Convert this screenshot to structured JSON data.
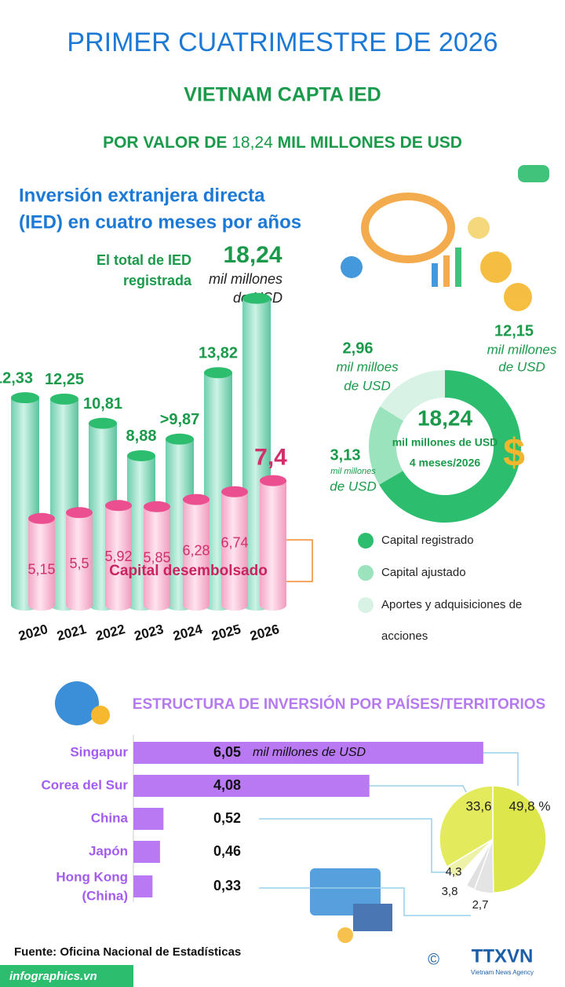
{
  "header": {
    "title": "PRIMER CUATRIMESTRE DE 2026",
    "subtitle": "VIETNAM CAPTA IED",
    "headline": [
      "POR VALOR DE",
      "18,24",
      "MIL MILLONES DE USD"
    ]
  },
  "years_chart": {
    "title_lines": [
      "Inversión extranjera directa",
      "(IED) en cuatro meses por años"
    ],
    "total_lines": [
      "El total de IED",
      "registrada"
    ],
    "total_unit_lines": [
      "mil millones",
      "de USD"
    ],
    "categories": [
      "2020",
      "2021",
      "2022",
      "2023",
      "2024",
      "2025",
      "2026"
    ],
    "series": [
      {
        "name": "Capital registrado",
        "color": "#2dbd6e",
        "values": [
          12.33,
          12.25,
          10.81,
          8.88,
          9.87,
          13.82,
          18.24
        ],
        "value_labels": [
          "12,33",
          "12,25",
          "10,81",
          "8,88",
          ">9,87",
          "13,82",
          "18,24"
        ]
      },
      {
        "name": "Capital desembolsado",
        "color": "#ec4f8f",
        "values": [
          5.15,
          5.5,
          5.92,
          5.85,
          6.28,
          6.74,
          7.4
        ],
        "value_labels": [
          "5,15",
          "5,5",
          "5,92",
          "5,85",
          "6,28",
          "6,74",
          "7,4"
        ]
      }
    ]
  },
  "donut": {
    "center_lines": [
      "18,24",
      "mil millones de USD",
      "4 meses/2026"
    ],
    "segments": [
      {
        "name": "Capital registrado",
        "color": "#2dbd6e",
        "value": 12.15,
        "label": "12,15",
        "unit_lines": [
          "mil millones",
          "de USD"
        ]
      },
      {
        "name": "Capital ajustado",
        "color": "#9ae3bd",
        "value": 3.13,
        "label": "3,13",
        "unit_lines": [
          "mil millones",
          "de USD"
        ]
      },
      {
        "name": "Aportes y adquisiciones de acciones",
        "color": "#d8f3e5",
        "value": 2.96,
        "label": "2,96",
        "unit_lines": [
          "mil milloes",
          "de USD"
        ]
      }
    ],
    "legend_last_lines": [
      "Aportes y adquisiciones de",
      "acciones"
    ]
  },
  "countries": {
    "title": "ESTRUCTURA DE INVERSIÓN POR PAÍSES/TERRITORIOS",
    "unit": "mil millones de USD",
    "color": "#b879f2",
    "rows": [
      {
        "name_lines": [
          "Singapur"
        ],
        "value": 6.05,
        "label": "6,05",
        "share": 49.8,
        "share_label": "49,8 %"
      },
      {
        "name_lines": [
          "Corea del Sur"
        ],
        "value": 4.08,
        "label": "4,08",
        "share": 33.6,
        "share_label": "33,6"
      },
      {
        "name_lines": [
          "China"
        ],
        "value": 0.52,
        "label": "0,52",
        "share": 4.3,
        "share_label": "4,3"
      },
      {
        "name_lines": [
          "Japón"
        ],
        "value": 0.46,
        "label": "0,46",
        "share": 3.8,
        "share_label": "3,8"
      },
      {
        "name_lines": [
          "Hong Kong",
          "(China)"
        ],
        "value": 0.33,
        "label": "0,33",
        "share": 2.7,
        "share_label": "2,7"
      }
    ]
  },
  "footer": {
    "source": "Fuente: Oficina Nacional de Estadísticas",
    "site": "infographics.vn",
    "brand": "TTXVN",
    "brand_sub": "Vietnam News Agency"
  }
}
